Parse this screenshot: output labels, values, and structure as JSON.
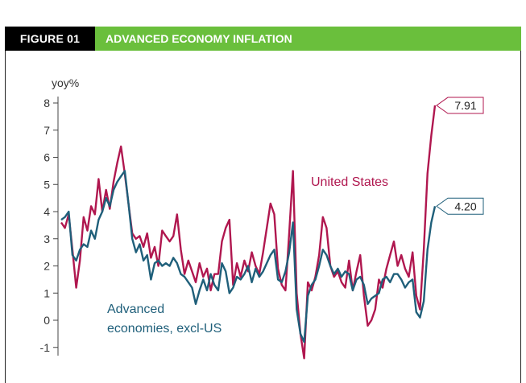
{
  "header": {
    "figure_label": "FIGURE 01",
    "title": "ADVANCED ECONOMY INFLATION"
  },
  "colors": {
    "us": "#b0174f",
    "adv": "#1f5f7a",
    "header_green": "#6abf3c"
  },
  "chart_data": {
    "type": "line",
    "title": "ADVANCED ECONOMY INFLATION",
    "ylabel": "yoy%",
    "xlabel": "",
    "ylim": [
      -1.2,
      8.3
    ],
    "yticks": [
      8,
      7,
      6,
      5,
      4,
      3,
      2,
      1,
      0,
      -1
    ],
    "ytick_labels": [
      "8",
      "7",
      "6",
      "5",
      "4",
      "3",
      "2",
      "1",
      "0",
      "-1"
    ],
    "x_index_range": [
      0,
      100
    ],
    "series": [
      {
        "name": "United States",
        "label": "United States",
        "end_label": "7.91",
        "points": [
          [
            0,
            3.6
          ],
          [
            1,
            3.4
          ],
          [
            2,
            3.9
          ],
          [
            3,
            2.6
          ],
          [
            4,
            1.2
          ],
          [
            5,
            2.2
          ],
          [
            6,
            3.8
          ],
          [
            7,
            3.3
          ],
          [
            8,
            4.2
          ],
          [
            9,
            3.9
          ],
          [
            10,
            5.2
          ],
          [
            11,
            4.0
          ],
          [
            12,
            4.8
          ],
          [
            13,
            4.1
          ],
          [
            14,
            5.1
          ],
          [
            15,
            5.8
          ],
          [
            16,
            6.4
          ],
          [
            17,
            5.4
          ],
          [
            18,
            4.3
          ],
          [
            19,
            3.2
          ],
          [
            20,
            3.0
          ],
          [
            21,
            3.1
          ],
          [
            22,
            2.7
          ],
          [
            23,
            3.2
          ],
          [
            24,
            2.3
          ],
          [
            25,
            2.7
          ],
          [
            26,
            2.0
          ],
          [
            27,
            3.3
          ],
          [
            28,
            3.1
          ],
          [
            29,
            2.9
          ],
          [
            30,
            3.1
          ],
          [
            31,
            3.9
          ],
          [
            32,
            2.6
          ],
          [
            33,
            1.7
          ],
          [
            34,
            2.2
          ],
          [
            35,
            1.8
          ],
          [
            36,
            1.4
          ],
          [
            37,
            2.1
          ],
          [
            38,
            1.6
          ],
          [
            39,
            1.9
          ],
          [
            40,
            1.1
          ],
          [
            41,
            1.7
          ],
          [
            42,
            1.7
          ],
          [
            43,
            2.9
          ],
          [
            44,
            3.4
          ],
          [
            45,
            3.7
          ],
          [
            46,
            1.3
          ],
          [
            47,
            2.1
          ],
          [
            48,
            1.6
          ],
          [
            49,
            2.2
          ],
          [
            50,
            1.8
          ],
          [
            51,
            2.5
          ],
          [
            52,
            2.0
          ],
          [
            53,
            1.7
          ],
          [
            54,
            2.5
          ],
          [
            55,
            3.4
          ],
          [
            56,
            4.3
          ],
          [
            57,
            3.9
          ],
          [
            58,
            1.9
          ],
          [
            59,
            1.3
          ],
          [
            60,
            1.1
          ],
          [
            61,
            3.2
          ],
          [
            62,
            5.5
          ],
          [
            63,
            1.0
          ],
          [
            64,
            -0.5
          ],
          [
            65,
            -1.4
          ],
          [
            66,
            1.4
          ],
          [
            67,
            1.1
          ],
          [
            68,
            1.6
          ],
          [
            69,
            2.4
          ],
          [
            70,
            3.8
          ],
          [
            71,
            3.4
          ],
          [
            72,
            2.0
          ],
          [
            73,
            1.6
          ],
          [
            74,
            1.8
          ],
          [
            75,
            1.4
          ],
          [
            76,
            1.2
          ],
          [
            77,
            2.2
          ],
          [
            78,
            1.1
          ],
          [
            79,
            1.8
          ],
          [
            80,
            2.4
          ],
          [
            81,
            0.9
          ],
          [
            82,
            -0.2
          ],
          [
            83,
            0.0
          ],
          [
            84,
            0.4
          ],
          [
            85,
            1.5
          ],
          [
            86,
            1.2
          ],
          [
            87,
            1.9
          ],
          [
            88,
            2.4
          ],
          [
            89,
            2.9
          ],
          [
            90,
            2.0
          ],
          [
            91,
            2.4
          ],
          [
            92,
            1.9
          ],
          [
            93,
            1.6
          ],
          [
            94,
            2.5
          ],
          [
            95,
            0.9
          ],
          [
            96,
            0.4
          ],
          [
            97,
            2.6
          ],
          [
            98,
            5.4
          ],
          [
            99,
            6.8
          ],
          [
            100,
            7.91
          ]
        ]
      },
      {
        "name": "Advanced economies, excl-US",
        "label": [
          "Advanced",
          "economies, excl-US"
        ],
        "end_label": "4.20",
        "points": [
          [
            0,
            3.7
          ],
          [
            1,
            3.8
          ],
          [
            2,
            4.0
          ],
          [
            3,
            2.4
          ],
          [
            4,
            2.2
          ],
          [
            5,
            2.6
          ],
          [
            6,
            2.8
          ],
          [
            7,
            2.7
          ],
          [
            8,
            3.3
          ],
          [
            9,
            3.0
          ],
          [
            10,
            3.7
          ],
          [
            11,
            4.0
          ],
          [
            12,
            4.5
          ],
          [
            13,
            4.2
          ],
          [
            14,
            4.8
          ],
          [
            15,
            5.1
          ],
          [
            16,
            5.3
          ],
          [
            17,
            5.5
          ],
          [
            18,
            4.3
          ],
          [
            19,
            3.0
          ],
          [
            20,
            2.5
          ],
          [
            21,
            2.8
          ],
          [
            22,
            2.2
          ],
          [
            23,
            2.4
          ],
          [
            24,
            1.5
          ],
          [
            25,
            2.1
          ],
          [
            26,
            2.2
          ],
          [
            27,
            2.0
          ],
          [
            28,
            2.1
          ],
          [
            29,
            2.0
          ],
          [
            30,
            2.3
          ],
          [
            31,
            2.1
          ],
          [
            32,
            1.7
          ],
          [
            33,
            1.6
          ],
          [
            34,
            1.4
          ],
          [
            35,
            1.2
          ],
          [
            36,
            0.6
          ],
          [
            37,
            1.1
          ],
          [
            38,
            1.5
          ],
          [
            39,
            1.1
          ],
          [
            40,
            1.7
          ],
          [
            41,
            1.3
          ],
          [
            42,
            1.1
          ],
          [
            43,
            2.1
          ],
          [
            44,
            1.8
          ],
          [
            45,
            1.0
          ],
          [
            46,
            1.2
          ],
          [
            47,
            1.6
          ],
          [
            48,
            1.5
          ],
          [
            49,
            1.7
          ],
          [
            50,
            2.0
          ],
          [
            51,
            1.4
          ],
          [
            52,
            1.9
          ],
          [
            53,
            1.6
          ],
          [
            54,
            1.8
          ],
          [
            55,
            2.1
          ],
          [
            56,
            2.4
          ],
          [
            57,
            2.6
          ],
          [
            58,
            1.5
          ],
          [
            59,
            1.4
          ],
          [
            60,
            1.8
          ],
          [
            61,
            2.5
          ],
          [
            62,
            3.6
          ],
          [
            63,
            0.4
          ],
          [
            64,
            -0.5
          ],
          [
            65,
            -0.8
          ],
          [
            66,
            0.9
          ],
          [
            67,
            1.3
          ],
          [
            68,
            1.5
          ],
          [
            69,
            2.0
          ],
          [
            70,
            2.6
          ],
          [
            71,
            2.4
          ],
          [
            72,
            2.0
          ],
          [
            73,
            1.7
          ],
          [
            74,
            1.9
          ],
          [
            75,
            1.6
          ],
          [
            76,
            1.8
          ],
          [
            77,
            1.7
          ],
          [
            78,
            1.1
          ],
          [
            79,
            1.5
          ],
          [
            80,
            1.6
          ],
          [
            81,
            1.3
          ],
          [
            82,
            0.6
          ],
          [
            83,
            0.8
          ],
          [
            84,
            0.9
          ],
          [
            85,
            1.0
          ],
          [
            86,
            1.5
          ],
          [
            87,
            1.6
          ],
          [
            88,
            1.4
          ],
          [
            89,
            1.7
          ],
          [
            90,
            1.7
          ],
          [
            91,
            1.5
          ],
          [
            92,
            1.2
          ],
          [
            93,
            1.4
          ],
          [
            94,
            1.5
          ],
          [
            95,
            0.3
          ],
          [
            96,
            0.1
          ],
          [
            97,
            0.7
          ],
          [
            98,
            2.6
          ],
          [
            99,
            3.6
          ],
          [
            100,
            4.2
          ]
        ]
      }
    ],
    "grid": false,
    "legend": "inline labels"
  }
}
